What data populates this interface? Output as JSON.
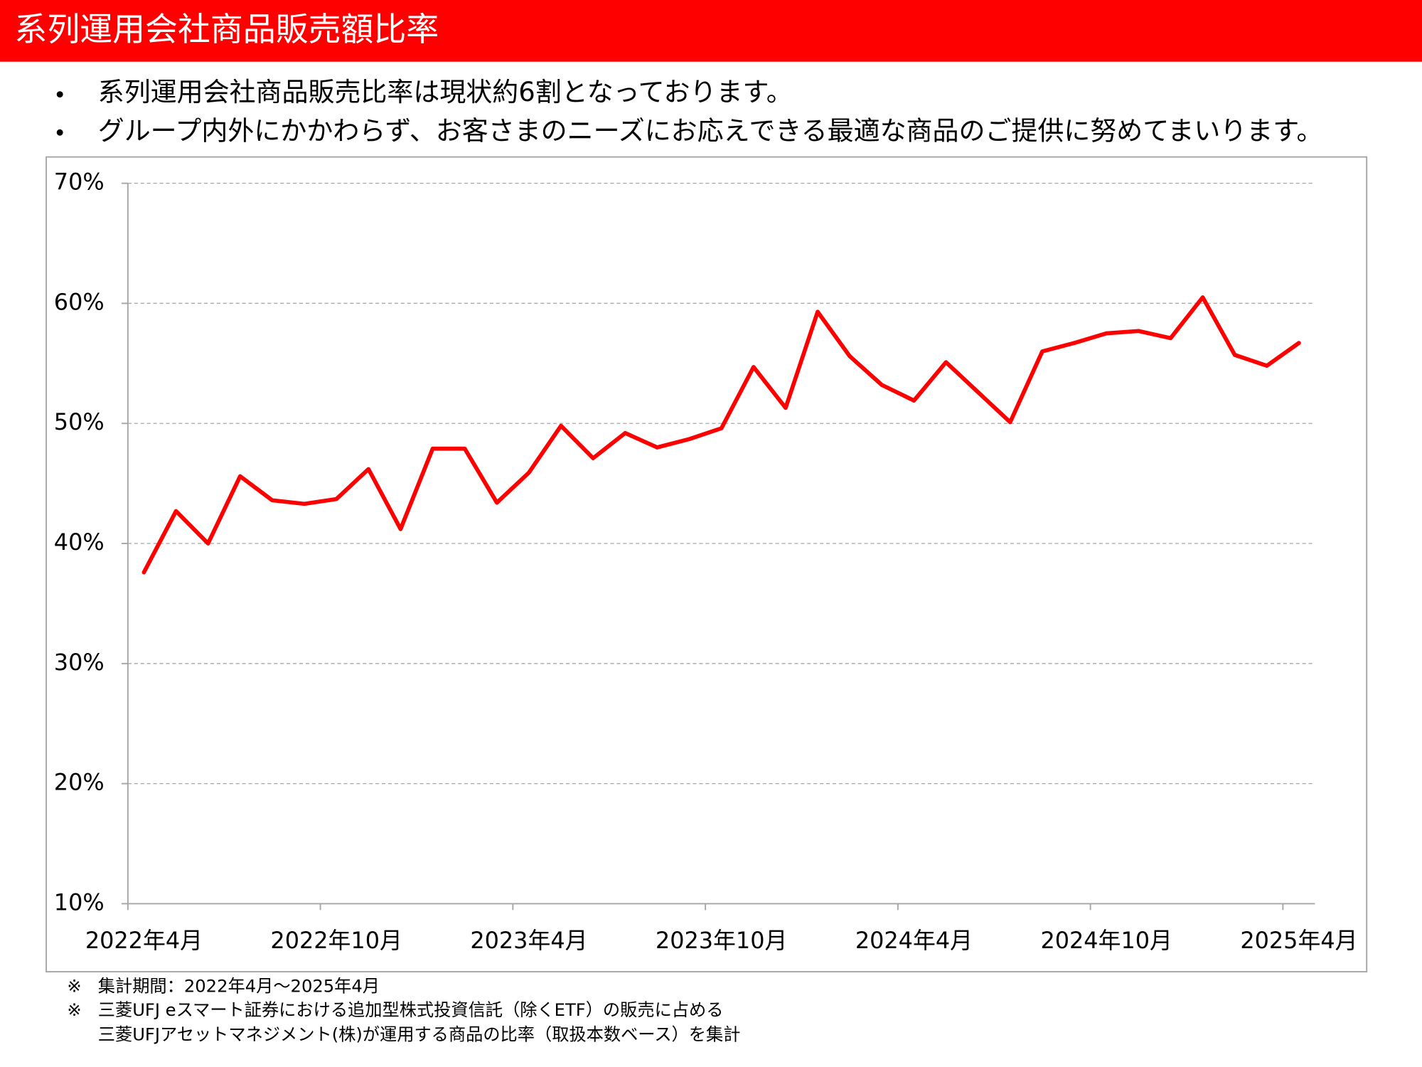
{
  "header": {
    "title": "系列運用会社商品販売額比率"
  },
  "bullets": [
    "系列運用会社商品販売比率は現状約6割となっております。",
    "グループ内外にかかわらず、お客さまのニーズにお応えできる最適な商品のご提供に努めてまいります。"
  ],
  "chart_data": {
    "type": "line",
    "categories": [
      "2022年4月",
      null,
      null,
      null,
      null,
      null,
      "2022年10月",
      null,
      null,
      null,
      null,
      null,
      "2023年4月",
      null,
      null,
      null,
      null,
      null,
      "2023年10月",
      null,
      null,
      null,
      null,
      null,
      "2024年4月",
      null,
      null,
      null,
      null,
      null,
      "2024年10月",
      null,
      null,
      null,
      null,
      null,
      "2025年4月"
    ],
    "values": [
      37.6,
      42.7,
      40.0,
      45.6,
      43.6,
      43.3,
      43.7,
      46.2,
      41.2,
      47.9,
      47.9,
      43.4,
      45.9,
      49.8,
      47.1,
      49.2,
      48.0,
      48.7,
      49.6,
      54.7,
      51.3,
      59.3,
      55.6,
      53.2,
      51.9,
      55.1,
      52.6,
      50.1,
      56.0,
      56.7,
      57.5,
      57.7,
      57.1,
      60.5,
      55.7,
      54.8,
      56.7
    ],
    "color": "#ff0000",
    "ylim": [
      10,
      70
    ],
    "yticks": [
      {
        "value": 10,
        "label": "10%"
      },
      {
        "value": 20,
        "label": "20%"
      },
      {
        "value": 30,
        "label": "30%"
      },
      {
        "value": 40,
        "label": "40%"
      },
      {
        "value": 50,
        "label": "50%"
      },
      {
        "value": 60,
        "label": "60%"
      },
      {
        "value": 70,
        "label": "70%"
      }
    ],
    "grid": true
  },
  "footnotes": [
    {
      "mark": "※",
      "lines": [
        "集計期間：2022年4月～2025年4月"
      ]
    },
    {
      "mark": "※",
      "lines": [
        "三菱UFJ eスマート証券における追加型株式投資信託（除くETF）の販売に占める",
        "三菱UFJアセットマネジメント(株)が運用する商品の比率（取扱本数ベース）を集計"
      ]
    }
  ]
}
